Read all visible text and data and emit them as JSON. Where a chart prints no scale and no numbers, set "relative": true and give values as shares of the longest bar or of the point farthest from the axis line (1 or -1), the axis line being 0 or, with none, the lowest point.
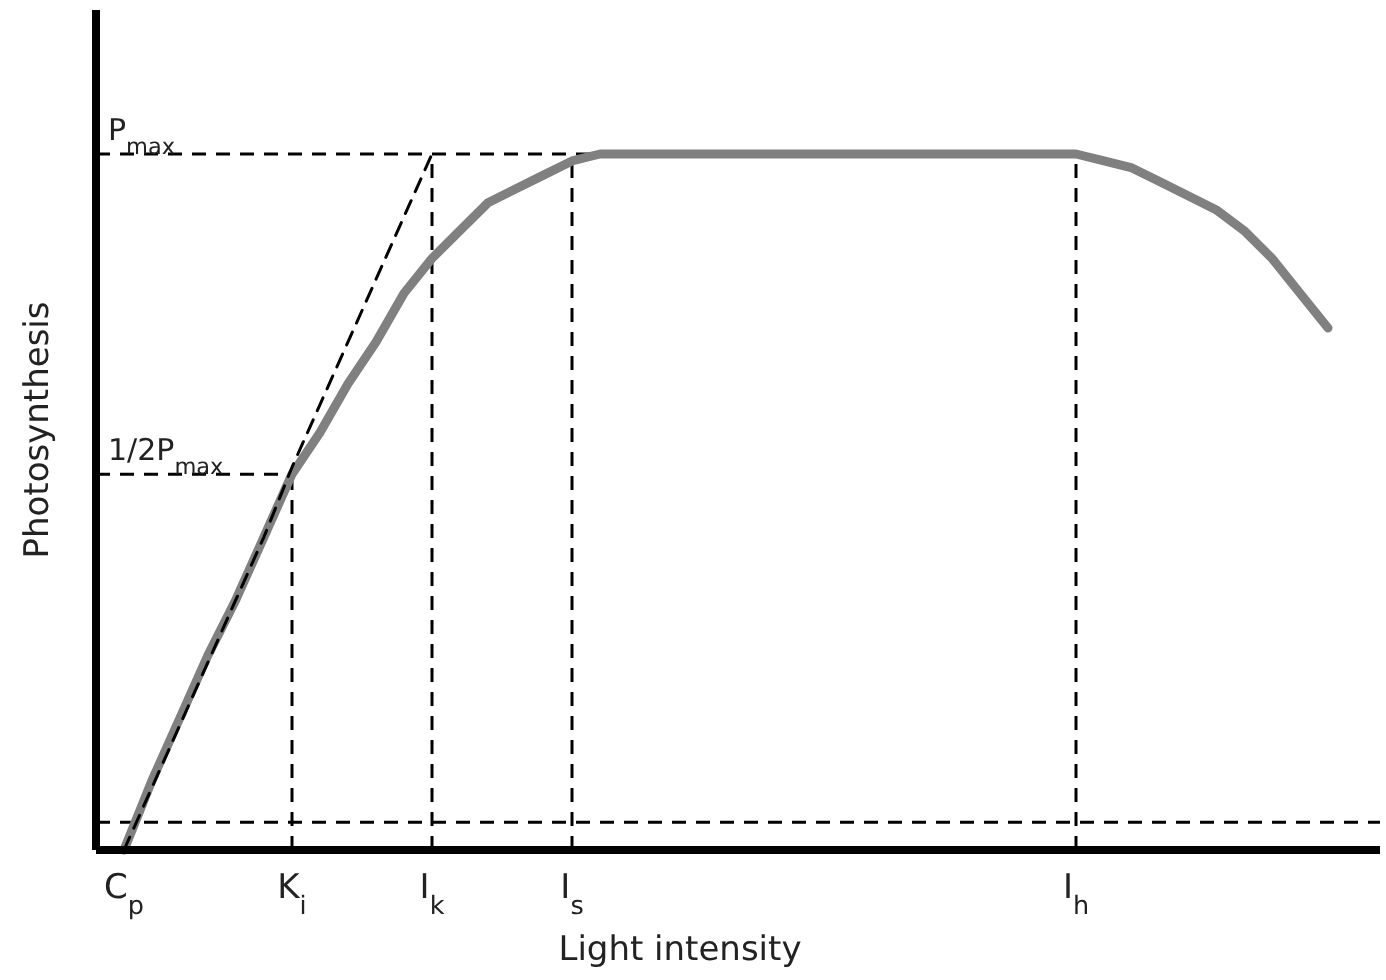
{
  "chart_data": {
    "type": "line",
    "relative": true,
    "xlabel": "Light intensity",
    "ylabel": "Photosynthesis",
    "categories": [
      "C$_{p}$",
      null,
      null,
      null,
      null,
      null,
      "K$_{i}$",
      null,
      null,
      null,
      null,
      "I$_{k}$",
      null,
      null,
      null,
      null,
      "I$_{s}$",
      null,
      null,
      null,
      null,
      null,
      null,
      null,
      null,
      null,
      null,
      null,
      null,
      null,
      null,
      null,
      null,
      null,
      "I$_{h}$",
      null,
      null,
      null,
      null,
      null,
      null,
      null,
      null,
      null
    ],
    "series": [
      {
        "color": "#808080",
        "line_style": "solid",
        "values": [
          0,
          0.1,
          0.19,
          0.28,
          0.36,
          0.45,
          0.54,
          0.6,
          0.67,
          0.73,
          0.8,
          0.85,
          0.89,
          0.93,
          0.95,
          0.97,
          0.99,
          1,
          1,
          1,
          1,
          1,
          1,
          1,
          1,
          1,
          1,
          1,
          1,
          1,
          1,
          1,
          1,
          1,
          1,
          0.99,
          0.98,
          0.96,
          0.94,
          0.92,
          0.89,
          0.85,
          0.8,
          0.75
        ]
      },
      {
        "color": "#000000",
        "line_style": "dashed",
        "values": [
          0,
          0.09,
          0.18,
          0.27,
          0.36,
          0.45,
          0.55,
          0.64,
          0.73,
          0.82,
          0.91,
          1,
          null,
          null,
          null,
          null,
          null,
          null,
          null,
          null,
          null,
          null,
          null,
          null,
          null,
          null,
          null,
          null,
          null,
          null,
          null,
          null,
          null,
          null,
          null,
          null,
          null,
          null,
          null,
          null,
          null,
          null,
          null,
          null
        ]
      }
    ],
    "ref_lines": [
      {
        "axis": "y",
        "value": 1,
        "label": "P$_{max}$"
      },
      {
        "axis": "y",
        "value": 0.54,
        "label": "1/2P$_{max}$"
      },
      {
        "axis": "y",
        "value": 0.04
      },
      {
        "axis": "x",
        "value": "K$_{i}$"
      },
      {
        "axis": "x",
        "value": "I$_{k}$"
      },
      {
        "axis": "x",
        "value": "I$_{s}$"
      },
      {
        "axis": "x",
        "value": "I$_{h}$"
      }
    ]
  }
}
